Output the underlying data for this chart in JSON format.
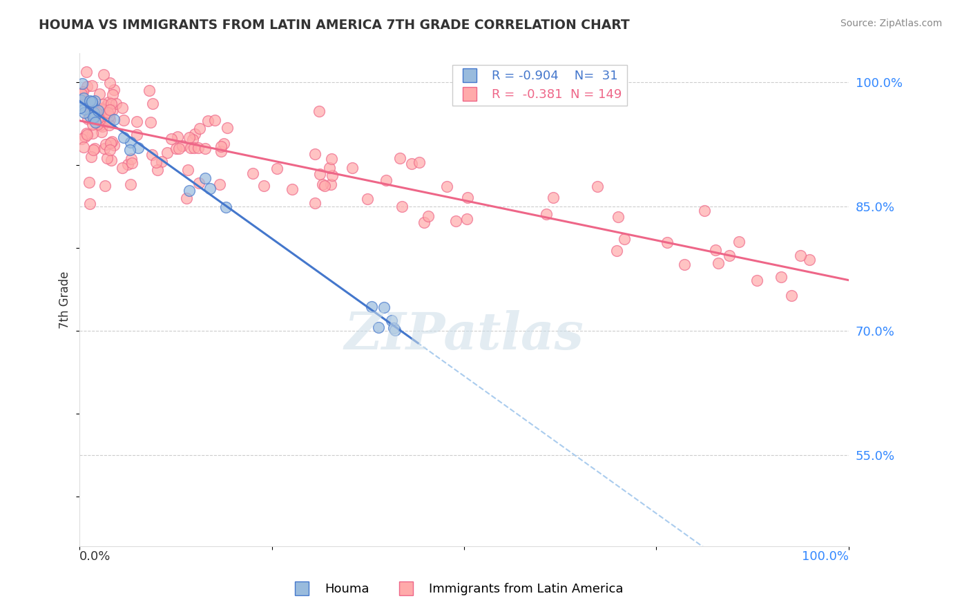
{
  "title": "HOUMA VS IMMIGRANTS FROM LATIN AMERICA 7TH GRADE CORRELATION CHART",
  "source_text": "Source: ZipAtlas.com",
  "ylabel": "7th Grade",
  "watermark": "ZIPatlas",
  "legend_blue_R": "-0.904",
  "legend_blue_N": "31",
  "legend_pink_R": "-0.381",
  "legend_pink_N": "149",
  "blue_color": "#99BBDD",
  "pink_color": "#FFAAAA",
  "blue_line_color": "#4477CC",
  "pink_line_color": "#EE6688",
  "dashed_line_color": "#AACCEE",
  "ytick_labels": [
    "55.0%",
    "70.0%",
    "85.0%",
    "100.0%"
  ],
  "ytick_values": [
    0.55,
    0.7,
    0.85,
    1.0
  ],
  "ymin": 0.44,
  "ymax": 1.035,
  "xmin": 0.0,
  "xmax": 1.0
}
